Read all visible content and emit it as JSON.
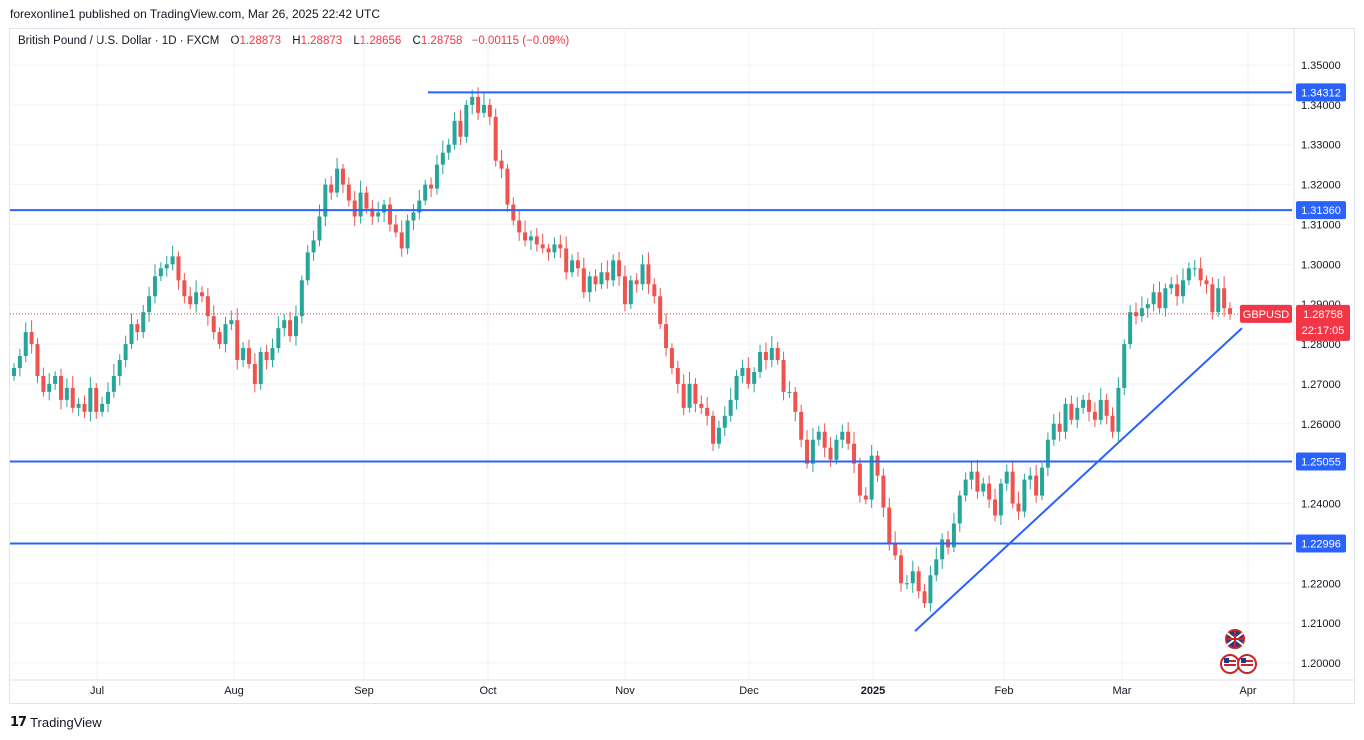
{
  "caption": "forexonline1 published on TradingView.com, Mar 26, 2025 22:42 UTC",
  "legend": {
    "symbol": "British Pound / U.S. Dollar · 1D · FXCM",
    "o_label": "O",
    "o": "1.28873",
    "h_label": "H",
    "h": "1.28873",
    "l_label": "L",
    "l": "1.28656",
    "c_label": "C",
    "c": "1.28758",
    "change": "−0.00115 (−0.09%)"
  },
  "footer": {
    "brand": "TradingView"
  },
  "colors": {
    "up": "#26a69a",
    "down": "#ef5350",
    "line": "#2962ff",
    "price_tag": "#f23645"
  },
  "chart_data": {
    "type": "candlestick",
    "instrument": "GBPUSD",
    "timeframe": "1D",
    "ylim": [
      1.195,
      1.352
    ],
    "y_ticks": [
      "1.35000",
      "1.34000",
      "1.33000",
      "1.32000",
      "1.31000",
      "1.30000",
      "1.29000",
      "1.28000",
      "1.27000",
      "1.26000",
      "1.24000",
      "1.22000",
      "1.21000",
      "1.20000"
    ],
    "x_ticks": [
      "Jul",
      "Aug",
      "Sep",
      "Oct",
      "Nov",
      "Dec",
      "2025",
      "Feb",
      "Mar",
      "Apr"
    ],
    "current_price": {
      "label": "GBPUSD",
      "value": "1.28758",
      "countdown": "22:17:05"
    },
    "horizontal_levels": [
      {
        "value": 1.34312,
        "label": "1.34312"
      },
      {
        "value": 1.3136,
        "label": "1.31360"
      },
      {
        "value": 1.25055,
        "label": "1.25055"
      },
      {
        "value": 1.22996,
        "label": "1.22996"
      }
    ],
    "trendline": {
      "from": {
        "date": "2025-01-13",
        "value": 1.208
      },
      "to": {
        "date": "2025-03-31",
        "value": 1.284
      }
    },
    "closes": [
      1.274,
      1.277,
      1.283,
      1.28,
      1.272,
      1.268,
      1.27,
      1.272,
      1.266,
      1.269,
      1.264,
      1.265,
      1.263,
      1.269,
      1.263,
      1.265,
      1.268,
      1.272,
      1.276,
      1.28,
      1.285,
      1.283,
      1.288,
      1.292,
      1.297,
      1.299,
      1.3,
      1.302,
      1.296,
      1.292,
      1.29,
      1.293,
      1.292,
      1.287,
      1.283,
      1.28,
      1.285,
      1.286,
      1.276,
      1.279,
      1.275,
      1.27,
      1.278,
      1.276,
      1.279,
      1.284,
      1.286,
      1.282,
      1.287,
      1.296,
      1.303,
      1.306,
      1.312,
      1.32,
      1.318,
      1.324,
      1.32,
      1.316,
      1.312,
      1.318,
      1.314,
      1.312,
      1.313,
      1.315,
      1.31,
      1.308,
      1.304,
      1.311,
      1.313,
      1.316,
      1.32,
      1.319,
      1.325,
      1.328,
      1.33,
      1.336,
      1.332,
      1.34,
      1.342,
      1.338,
      1.34,
      1.337,
      1.326,
      1.324,
      1.315,
      1.311,
      1.308,
      1.306,
      1.307,
      1.305,
      1.304,
      1.303,
      1.305,
      1.304,
      1.298,
      1.301,
      1.299,
      1.293,
      1.297,
      1.295,
      1.298,
      1.296,
      1.301,
      1.297,
      1.29,
      1.296,
      1.295,
      1.3,
      1.295,
      1.292,
      1.285,
      1.279,
      1.274,
      1.27,
      1.264,
      1.27,
      1.265,
      1.264,
      1.262,
      1.255,
      1.259,
      1.262,
      1.266,
      1.272,
      1.274,
      1.27,
      1.273,
      1.278,
      1.276,
      1.279,
      1.276,
      1.268,
      1.268,
      1.263,
      1.256,
      1.25,
      1.256,
      1.258,
      1.254,
      1.251,
      1.256,
      1.258,
      1.255,
      1.25,
      1.242,
      1.241,
      1.252,
      1.247,
      1.239,
      1.23,
      1.227,
      1.22,
      1.22,
      1.223,
      1.218,
      1.215,
      1.222,
      1.226,
      1.231,
      1.229,
      1.235,
      1.242,
      1.246,
      1.248,
      1.243,
      1.245,
      1.241,
      1.237,
      1.245,
      1.248,
      1.24,
      1.238,
      1.246,
      1.247,
      1.242,
      1.249,
      1.256,
      1.26,
      1.258,
      1.265,
      1.261,
      1.264,
      1.266,
      1.263,
      1.261,
      1.266,
      1.262,
      1.258,
      1.269,
      1.28,
      1.288,
      1.287,
      1.289,
      1.29,
      1.293,
      1.289,
      1.294,
      1.295,
      1.292,
      1.296,
      1.299,
      1.299,
      1.296,
      1.295,
      1.288,
      1.294,
      1.289,
      1.2876
    ]
  },
  "flags": {
    "top": "gb-flag-icon",
    "bottom": "us-flag-icon"
  }
}
